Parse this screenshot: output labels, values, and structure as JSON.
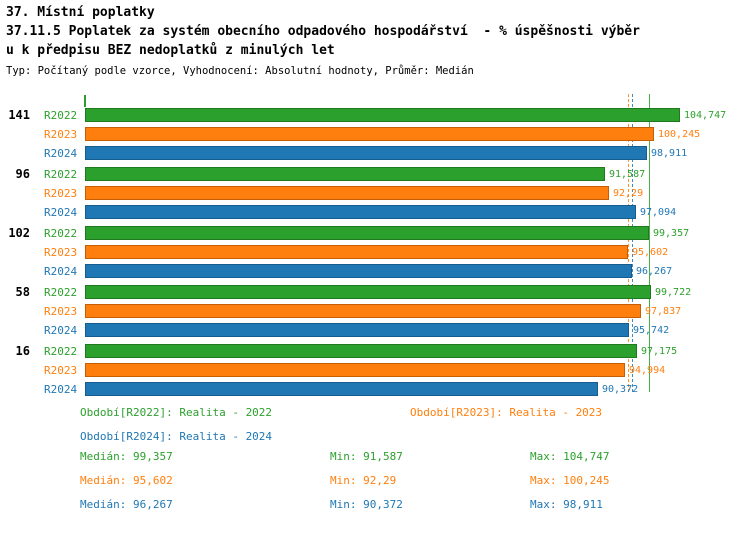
{
  "header": {
    "title1": "37. Místní poplatky",
    "title2": "37.11.5 Poplatek za systém obecního odpadového hospodářství  - % úspěšnosti výběr",
    "title3": "u k předpisu BEZ nedoplatků z minulých let",
    "meta": "Typ: Počítaný podle vzorce, Vyhodnocení: Absolutní hodnoty, Průměr: Medián"
  },
  "chart_data": {
    "type": "bar",
    "orientation": "horizontal",
    "title": "37.11.5 Poplatek za systém obecního odpadového hospodářství - % úspěšnosti výběru k předpisu BEZ nedoplatků z minulých let",
    "value_unit": "%",
    "grid": false,
    "legend_position": "bottom",
    "xlim": [
      0,
      117
    ],
    "series": [
      {
        "name": "R2022",
        "color": "#2ca02c",
        "edge": "#1f7a1f"
      },
      {
        "name": "R2023",
        "color": "#ff7f0e",
        "edge": "#c45f05"
      },
      {
        "name": "R2024",
        "color": "#1f77b4",
        "edge": "#155d8f"
      }
    ],
    "groups": [
      {
        "label": "141",
        "bars": [
          {
            "series": "R2022",
            "value": 104.747,
            "display": "104,747"
          },
          {
            "series": "R2023",
            "value": 100.245,
            "display": "100,245"
          },
          {
            "series": "R2024",
            "value": 98.911,
            "display": "98,911"
          }
        ]
      },
      {
        "label": "96",
        "bars": [
          {
            "series": "R2022",
            "value": 91.587,
            "display": "91,587"
          },
          {
            "series": "R2023",
            "value": 92.29,
            "display": "92,29"
          },
          {
            "series": "R2024",
            "value": 97.094,
            "display": "97,094"
          }
        ]
      },
      {
        "label": "102",
        "bars": [
          {
            "series": "R2022",
            "value": 99.357,
            "display": "99,357"
          },
          {
            "series": "R2023",
            "value": 95.602,
            "display": "95,602"
          },
          {
            "series": "R2024",
            "value": 96.267,
            "display": "96,267"
          }
        ]
      },
      {
        "label": "58",
        "bars": [
          {
            "series": "R2022",
            "value": 99.722,
            "display": "99,722"
          },
          {
            "series": "R2023",
            "value": 97.837,
            "display": "97,837"
          },
          {
            "series": "R2024",
            "value": 95.742,
            "display": "95,742"
          }
        ]
      },
      {
        "label": "16",
        "bars": [
          {
            "series": "R2022",
            "value": 97.175,
            "display": "97,175"
          },
          {
            "series": "R2023",
            "value": 94.994,
            "display": "94,994"
          },
          {
            "series": "R2024",
            "value": 90.372,
            "display": "90,372"
          }
        ]
      }
    ],
    "reference_lines": [
      {
        "series": "R2023",
        "value": 95.602,
        "style": "dashed",
        "meaning": "median R2023"
      },
      {
        "series": "R2024",
        "value": 96.267,
        "style": "dashed",
        "meaning": "median R2024"
      },
      {
        "series": "R2022",
        "value": 99.357,
        "style": "solid",
        "meaning": "median R2022"
      }
    ]
  },
  "legend": [
    {
      "series": "R2022",
      "label": "Období[R2022]: Realita - 2022"
    },
    {
      "series": "R2023",
      "label": "Období[R2023]: Realita - 2023"
    },
    {
      "series": "R2024",
      "label": "Období[R2024]: Realita - 2024"
    }
  ],
  "stats": [
    {
      "series": "R2022",
      "median": "Medián: 99,357",
      "min": "Min: 91,587",
      "max": "Max: 104,747"
    },
    {
      "series": "R2023",
      "median": "Medián: 95,602",
      "min": "Min: 92,29",
      "max": "Max: 100,245"
    },
    {
      "series": "R2024",
      "median": "Medián: 96,267",
      "min": "Min: 90,372",
      "max": "Max: 98,911"
    }
  ]
}
